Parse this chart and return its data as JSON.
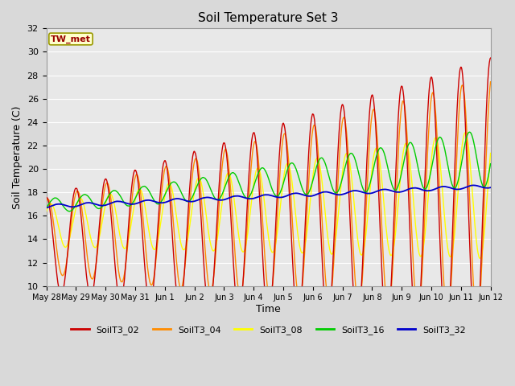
{
  "title": "Soil Temperature Set 3",
  "xlabel": "Time",
  "ylabel": "Soil Temperature (C)",
  "ylim": [
    10,
    32
  ],
  "yticks": [
    10,
    12,
    14,
    16,
    18,
    20,
    22,
    24,
    26,
    28,
    30,
    32
  ],
  "xlim": [
    0,
    15
  ],
  "figsize": [
    6.4,
    4.8
  ],
  "dpi": 100,
  "bg_color": "#d9d9d9",
  "plot_bg_color": "#e8e8e8",
  "grid_color": "#ffffff",
  "series_colors": {
    "SoilT3_02": "#cc0000",
    "SoilT3_04": "#ff8c00",
    "SoilT3_08": "#ffff00",
    "SoilT3_16": "#00cc00",
    "SoilT3_32": "#0000cc"
  },
  "tick_labels": [
    "May 28",
    "May 29",
    "May 30",
    "May 31",
    "Jun 1",
    "Jun 2",
    "Jun 3",
    "Jun 4",
    "Jun 5",
    "Jun 6",
    "Jun 7",
    "Jun 8",
    "Jun 9",
    "Jun 10",
    "Jun 11",
    "Jun 12"
  ],
  "annotation_text": "TW_met",
  "annotation_color": "#990000",
  "annotation_bg": "#ffffcc",
  "annotation_border": "#999900"
}
